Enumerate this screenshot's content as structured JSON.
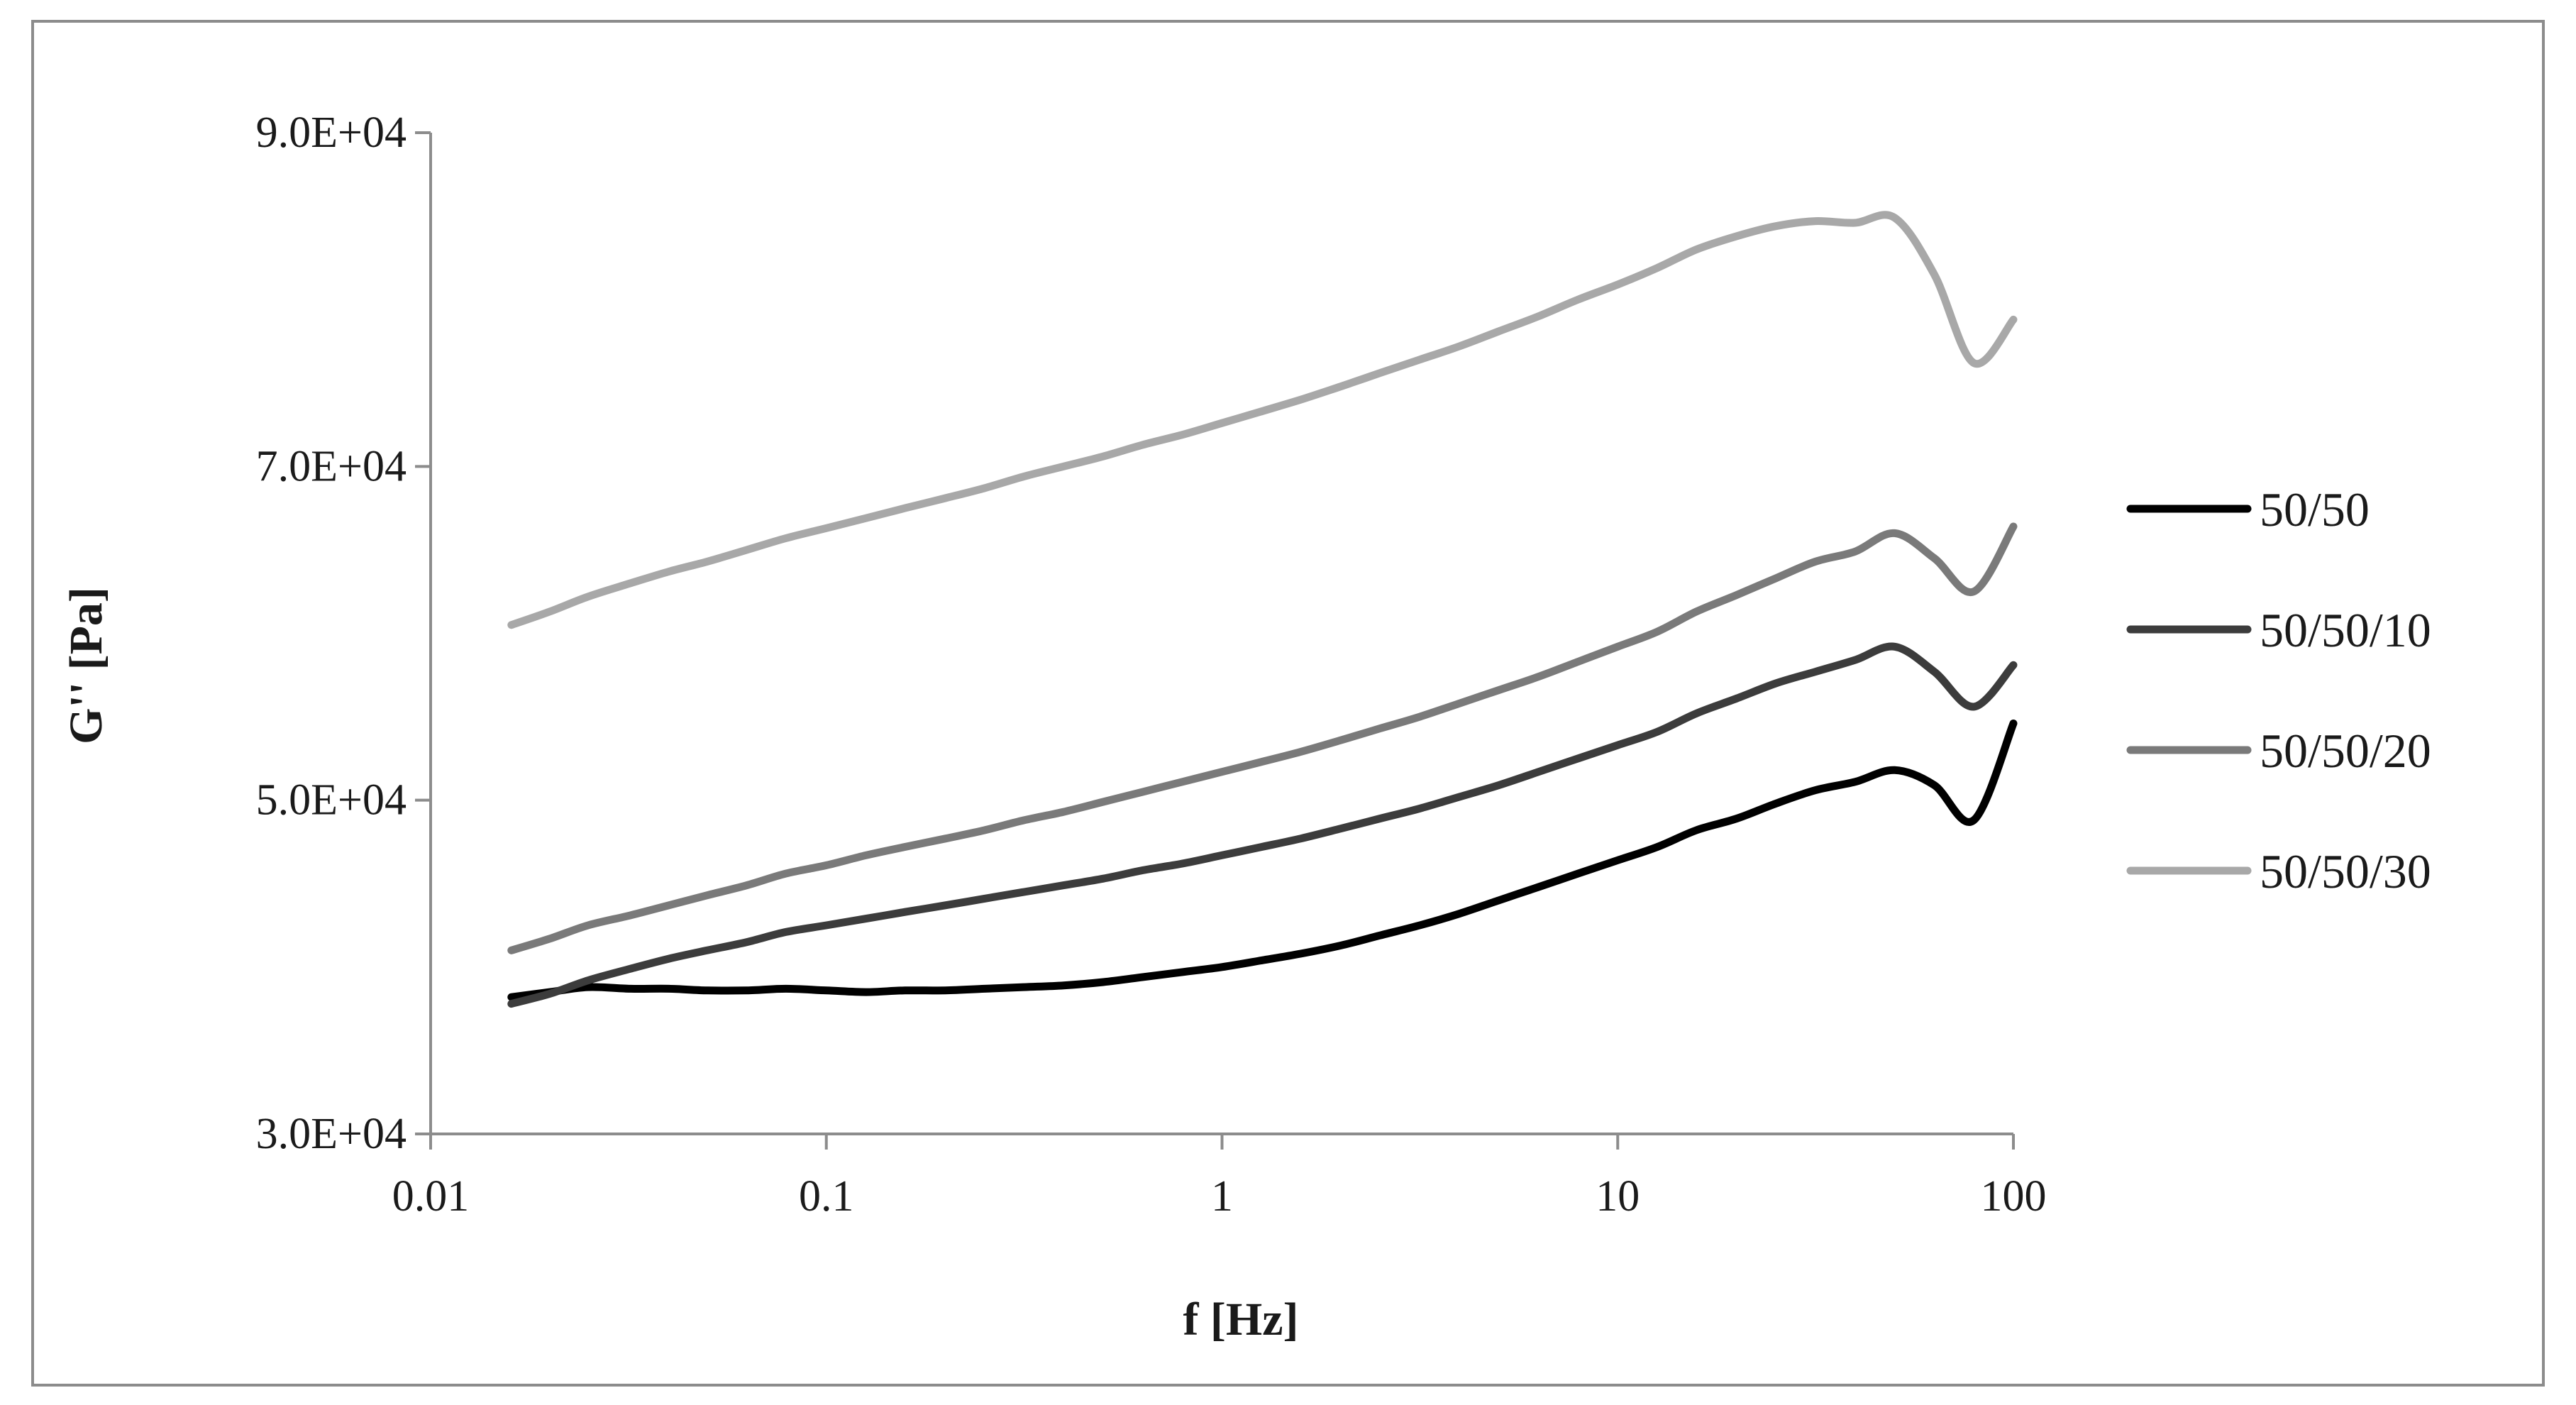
{
  "chart_data": {
    "type": "line",
    "title": "",
    "xlabel": "f [Hz]",
    "ylabel": "G'' [Pa]",
    "x_scale": "log",
    "xlim": [
      0.01,
      100
    ],
    "ylim": [
      30000,
      90000
    ],
    "x_ticks": [
      0.01,
      0.1,
      1,
      10,
      100
    ],
    "x_tick_labels": [
      "0.01",
      "0.1",
      "1",
      "10",
      "100"
    ],
    "y_ticks": [
      30000,
      50000,
      70000,
      90000
    ],
    "y_tick_labels": [
      "3.0E+04",
      "5.0E+04",
      "7.0E+04",
      "9.0E+04"
    ],
    "grid": false,
    "legend_position": "right",
    "x": [
      0.016,
      0.02,
      0.025,
      0.032,
      0.04,
      0.05,
      0.063,
      0.079,
      0.1,
      0.126,
      0.158,
      0.2,
      0.251,
      0.316,
      0.398,
      0.501,
      0.631,
      0.794,
      1,
      1.26,
      1.58,
      2,
      2.51,
      3.16,
      3.98,
      5.01,
      6.31,
      7.94,
      10,
      12.6,
      15.8,
      20,
      25.1,
      31.6,
      39.8,
      50.1,
      63.1,
      79.4,
      100
    ],
    "series": [
      {
        "name": "50/50",
        "color": "#000000",
        "values": [
          38200,
          38500,
          38800,
          38700,
          38700,
          38600,
          38600,
          38700,
          38600,
          38500,
          38600,
          38600,
          38700,
          38800,
          38900,
          39100,
          39400,
          39700,
          40000,
          40400,
          40800,
          41300,
          41900,
          42500,
          43200,
          44000,
          44800,
          45600,
          46400,
          47200,
          48200,
          48900,
          49800,
          50600,
          51100,
          51800,
          50900,
          48800,
          54600
        ]
      },
      {
        "name": "50/50/10",
        "color": "#3c3c3c",
        "values": [
          37800,
          38400,
          39200,
          39900,
          40500,
          41000,
          41500,
          42100,
          42500,
          42900,
          43300,
          43700,
          44100,
          44500,
          44900,
          45300,
          45800,
          46200,
          46700,
          47200,
          47700,
          48300,
          48900,
          49500,
          50200,
          50900,
          51700,
          52500,
          53300,
          54100,
          55200,
          56100,
          57000,
          57700,
          58400,
          59200,
          57700,
          55600,
          58100
        ]
      },
      {
        "name": "50/50/20",
        "color": "#7a7a7a",
        "values": [
          41000,
          41700,
          42500,
          43100,
          43700,
          44300,
          44900,
          45600,
          46100,
          46700,
          47200,
          47700,
          48200,
          48800,
          49300,
          49900,
          50500,
          51100,
          51700,
          52300,
          52900,
          53600,
          54300,
          55000,
          55800,
          56600,
          57400,
          58300,
          59200,
          60100,
          61300,
          62300,
          63300,
          64300,
          64900,
          66000,
          64500,
          62500,
          66400
        ]
      },
      {
        "name": "50/50/30",
        "color": "#a8a8a8",
        "values": [
          60500,
          61300,
          62200,
          63000,
          63700,
          64300,
          65000,
          65700,
          66300,
          66900,
          67500,
          68100,
          68700,
          69400,
          70000,
          70600,
          71300,
          71900,
          72600,
          73300,
          74000,
          74800,
          75600,
          76400,
          77200,
          78100,
          79000,
          80000,
          80900,
          81900,
          83000,
          83800,
          84400,
          84700,
          84600,
          84900,
          81500,
          76200,
          78800
        ]
      }
    ]
  }
}
